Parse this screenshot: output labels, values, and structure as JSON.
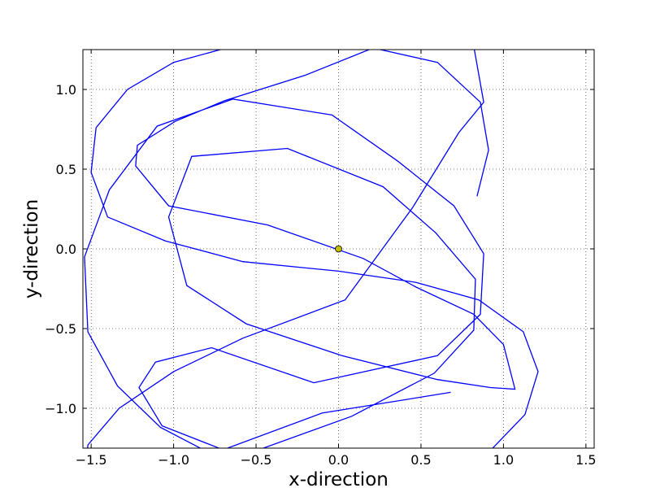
{
  "chart_data": {
    "type": "line",
    "xlabel": "x-direction",
    "ylabel": "y-direction",
    "xlim": [
      -1.55,
      1.55
    ],
    "ylim": [
      -1.25,
      1.25
    ],
    "xticks": [
      -1.5,
      -1.0,
      -0.5,
      0.0,
      0.5,
      1.0,
      1.5
    ],
    "xtick_labels": [
      "−1.5",
      "−1.0",
      "−0.5",
      "0.0",
      "0.5",
      "1.0",
      "1.5"
    ],
    "yticks": [
      -1.0,
      -0.5,
      0.0,
      0.5,
      1.0
    ],
    "ytick_labels": [
      "−1.0",
      "−0.5",
      "0.0",
      "0.5",
      "1.0"
    ],
    "grid": true,
    "line_color": "#0000ff",
    "marker": {
      "x": 0.0,
      "y": 0.0,
      "color": "#bfbf00"
    },
    "series": [
      {
        "x": [
          0.68,
          -0.1,
          -0.7,
          -1.07,
          -1.21,
          -1.11,
          -0.77,
          -0.15,
          0.6,
          0.86,
          0.88,
          0.7,
          0.36,
          -0.04,
          -0.64,
          -1.1,
          -1.39,
          -1.54,
          -1.52,
          -1.34,
          -1.08,
          -0.56,
          0.22,
          0.87,
          1.13,
          1.21,
          1.12,
          0.85,
          0.47,
          0.0,
          -0.58,
          -1.05,
          -1.4,
          -1.5,
          -1.47,
          -1.28,
          -1.0,
          -0.4,
          0.13,
          0.57,
          0.82,
          0.88,
          0.73,
          0.45,
          0.04,
          -0.58,
          -1.0,
          -1.33,
          -1.52,
          -1.53,
          -1.39,
          -1.15,
          -0.59,
          0.08,
          0.58,
          0.82,
          0.83,
          0.59,
          0.27,
          -0.31,
          -0.89,
          -1.03,
          -0.92,
          -0.56,
          0.02,
          0.6,
          0.92,
          1.07,
          1.0,
          0.82,
          0.47,
          0.15,
          -0.43,
          -1.03,
          -1.23,
          -1.22,
          -0.99,
          -0.69,
          -0.2,
          0.21,
          0.6,
          0.86,
          0.91,
          0.84
        ],
        "y": [
          -0.9,
          -1.03,
          -1.26,
          -1.11,
          -0.87,
          -0.71,
          -0.62,
          -0.84,
          -0.67,
          -0.41,
          -0.03,
          0.27,
          0.55,
          0.84,
          0.94,
          0.77,
          0.37,
          -0.05,
          -0.52,
          -0.86,
          -1.12,
          -1.4,
          -1.48,
          -1.32,
          -1.04,
          -0.77,
          -0.52,
          -0.32,
          -0.21,
          -0.14,
          -0.08,
          0.05,
          0.2,
          0.48,
          0.76,
          1.0,
          1.17,
          1.34,
          1.46,
          1.39,
          1.27,
          0.92,
          0.73,
          0.26,
          -0.32,
          -0.56,
          -0.77,
          -1.0,
          -1.23,
          -1.38,
          -1.44,
          -1.36,
          -1.3,
          -1.05,
          -0.78,
          -0.51,
          -0.19,
          0.1,
          0.39,
          0.63,
          0.58,
          0.2,
          -0.23,
          -0.47,
          -0.67,
          -0.82,
          -0.87,
          -0.88,
          -0.6,
          -0.41,
          -0.24,
          -0.06,
          0.15,
          0.27,
          0.52,
          0.65,
          0.8,
          0.93,
          1.09,
          1.26,
          1.17,
          0.92,
          0.62,
          0.33
        ]
      }
    ]
  }
}
